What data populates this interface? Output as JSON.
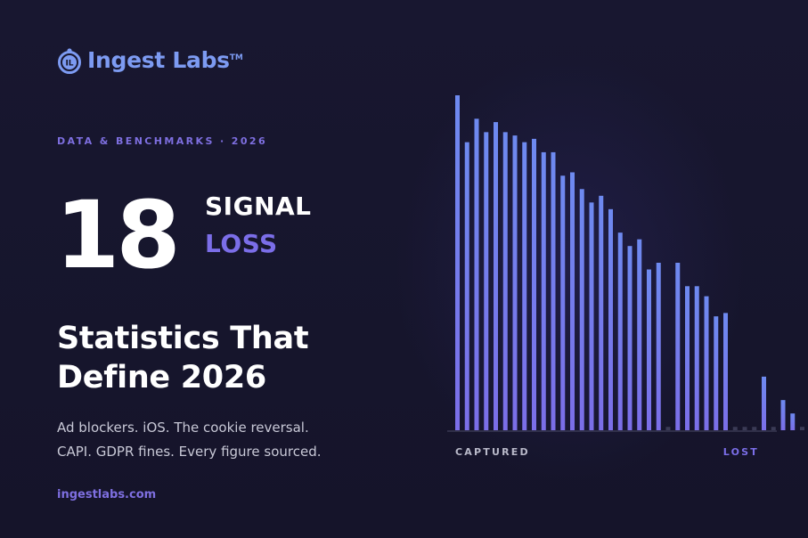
{
  "brand": {
    "name": "Ingest Labs",
    "tm": "TM",
    "mark_letters": "IL",
    "color": "#7d9bf2"
  },
  "kicker": "DATA & BENCHMARKS · 2026",
  "hero": {
    "number": "18",
    "word1": "SIGNAL",
    "word2": "LOSS"
  },
  "headline": {
    "line1": "Statistics That",
    "line2": "Define 2026"
  },
  "subtitle": {
    "line1": "Ad blockers. iOS. The cookie reversal.",
    "line2": "CAPI. GDPR fines. Every figure sourced."
  },
  "url": "ingestlabs.com",
  "colors": {
    "accent": "#7b6ee8",
    "bar_top": "#6e8af0",
    "bar_bottom": "#7b6ee8",
    "stub": "#3a3a55",
    "background": "#161528"
  },
  "chart_data": {
    "type": "bar",
    "xlabel_left": "CAPTURED",
    "xlabel_right": "LOST",
    "ylim": [
      0,
      100
    ],
    "values": [
      100,
      86,
      93,
      89,
      92,
      89,
      88,
      86,
      87,
      83,
      83,
      76,
      77,
      72,
      68,
      70,
      66,
      59,
      55,
      57,
      48,
      50,
      1,
      50,
      43,
      43,
      40,
      34,
      35,
      1,
      1,
      1,
      16,
      1,
      9,
      5,
      1
    ]
  }
}
